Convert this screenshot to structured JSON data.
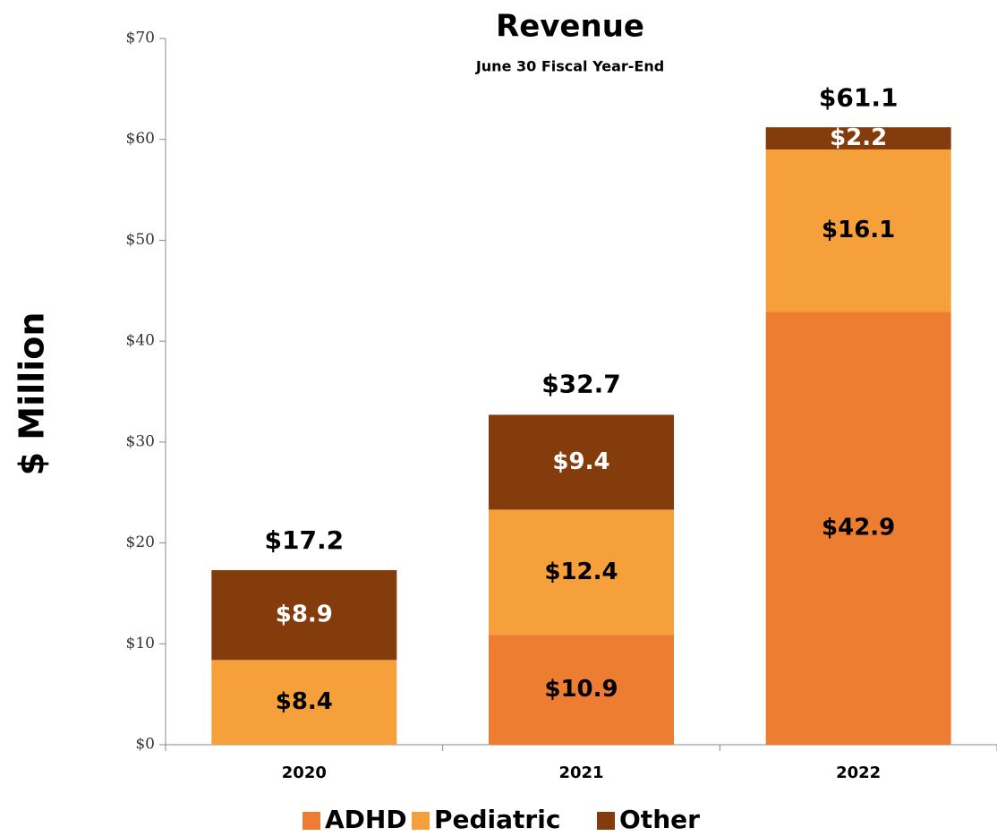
{
  "chart_data": {
    "type": "stacked_bar",
    "title": "Revenue",
    "subtitle": "June 30 Fiscal Year-End",
    "y_label": "$ Million",
    "categories": [
      "2020",
      "2021",
      "2022"
    ],
    "series": [
      {
        "name": "ADHD",
        "color": "#ED7D31",
        "label_color": "#000000",
        "values": [
          null,
          10.9,
          42.9
        ],
        "value_labels": [
          null,
          "$10.9",
          "$42.9"
        ]
      },
      {
        "name": "Pediatric",
        "color": "#F5A03A",
        "label_color": "#000000",
        "values": [
          8.4,
          12.4,
          16.1
        ],
        "value_labels": [
          "$8.4",
          "$12.4",
          "$16.1"
        ]
      },
      {
        "name": "Other",
        "color": "#843C0C",
        "label_color": "#ffffff",
        "values": [
          8.9,
          9.4,
          2.2
        ],
        "value_labels": [
          "$8.9",
          "$9.4",
          "$2.2"
        ]
      }
    ],
    "totals": [
      17.2,
      32.7,
      61.1
    ],
    "total_labels": [
      "$17.2",
      "$32.7",
      "$61.1"
    ],
    "ylim": [
      0,
      70
    ],
    "yticks": [
      {
        "value": 0,
        "label": "$0"
      },
      {
        "value": 10,
        "label": "$10"
      },
      {
        "value": 20,
        "label": "$20"
      },
      {
        "value": 30,
        "label": "$30"
      },
      {
        "value": 40,
        "label": "$40"
      },
      {
        "value": 50,
        "label": "$50"
      },
      {
        "value": 60,
        "label": "$60"
      },
      {
        "value": 70,
        "label": "$70"
      }
    ],
    "grid": false,
    "legend": "bottom"
  }
}
